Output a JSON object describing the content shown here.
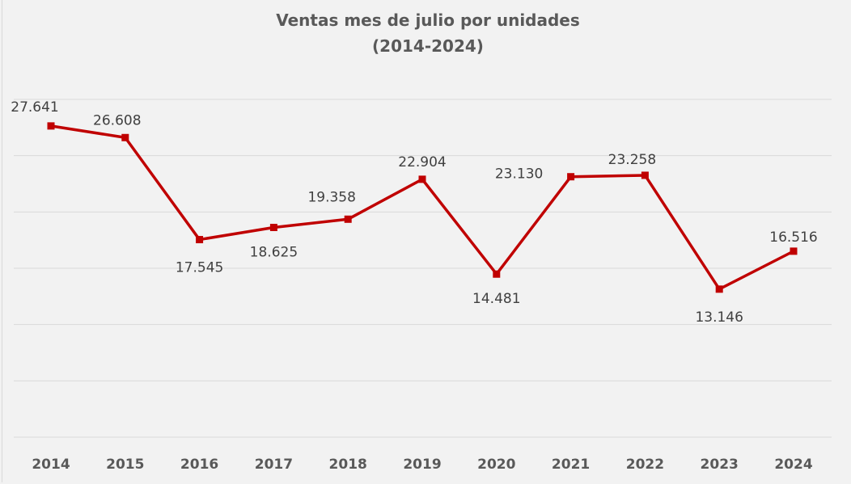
{
  "chart_data": {
    "type": "line",
    "title": "Ventas mes de julio por unidades",
    "subtitle": "(2014-2024)",
    "xlabel": "",
    "ylabel": "",
    "categories": [
      "2014",
      "2015",
      "2016",
      "2017",
      "2018",
      "2019",
      "2020",
      "2021",
      "2022",
      "2023",
      "2024"
    ],
    "values": [
      27641,
      26608,
      17545,
      18625,
      19358,
      22904,
      14481,
      23130,
      23258,
      13146,
      16516
    ],
    "data_labels": [
      "27.641",
      "26.608",
      "17.545",
      "18.625",
      "19.358",
      "22.904",
      "14.481",
      "23.130",
      "23.258",
      "13.146",
      "16.516"
    ],
    "ylim": [
      0,
      30000
    ],
    "y_gridline_step": 5000,
    "grid": true,
    "y_tick_labels_shown": false,
    "legend": "none",
    "colors": {
      "line": "#c00000",
      "background": "#f2f2f2",
      "grid": "#d9d9d9",
      "text": "#595959"
    }
  }
}
